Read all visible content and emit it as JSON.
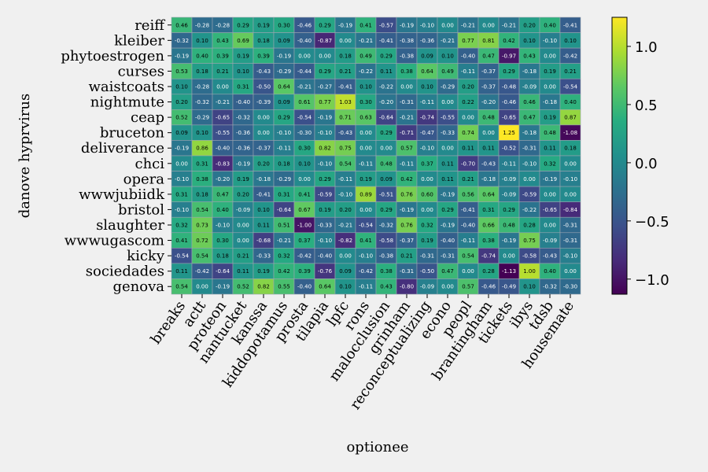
{
  "chart_data": {
    "type": "heatmap",
    "title": "",
    "xlabel": "optionee",
    "ylabel": "danove hyprvirus",
    "x_categories": [
      "breaks",
      "actt",
      "proteon",
      "nantucket",
      "kanssa",
      "kiddopotamus",
      "prosta",
      "tilapia",
      "lpfc",
      "rons",
      "malocclusion",
      "grinham",
      "reconceptualizing",
      "econo",
      "peopl",
      "brantingham",
      "tickets",
      "ibys",
      "tdsb",
      "housemate"
    ],
    "y_categories": [
      "reiff",
      "kleiber",
      "phytoestrogen",
      "curses",
      "waistcoats",
      "nightmute",
      "ceap",
      "bruceton",
      "deliverance",
      "chci",
      "opera",
      "wwwjubiidk",
      "bristol",
      "slaughter",
      "wwwugascom",
      "kicky",
      "sociedades",
      "genova"
    ],
    "values": [
      [
        0.46,
        -0.28,
        -0.28,
        0.29,
        0.19,
        0.3,
        -0.46,
        0.29,
        -0.19,
        0.41,
        -0.57,
        -0.19,
        -0.1,
        0.0,
        -0.21,
        0.0,
        -0.21,
        0.2,
        0.4,
        -0.41
      ],
      [
        -0.32,
        0.1,
        0.43,
        0.69,
        0.18,
        0.09,
        -0.4,
        -0.87,
        0.0,
        -0.21,
        -0.41,
        -0.38,
        -0.36,
        -0.21,
        0.77,
        0.81,
        0.42,
        0.1,
        -0.1,
        0.1
      ],
      [
        -0.19,
        0.4,
        0.39,
        0.19,
        0.39,
        -0.19,
        0.0,
        0.0,
        0.18,
        0.49,
        0.29,
        -0.38,
        0.09,
        0.1,
        -0.4,
        0.47,
        -0.97,
        0.43,
        0.0,
        -0.42
      ],
      [
        0.53,
        0.18,
        0.21,
        0.1,
        -0.43,
        -0.29,
        -0.44,
        0.29,
        0.21,
        -0.22,
        0.11,
        0.38,
        0.64,
        0.49,
        -0.11,
        -0.37,
        0.29,
        -0.18,
        0.19,
        0.21
      ],
      [
        0.1,
        -0.28,
        0.0,
        0.31,
        -0.5,
        0.64,
        -0.21,
        -0.27,
        -0.41,
        0.1,
        -0.22,
        0.0,
        0.1,
        -0.29,
        0.2,
        -0.37,
        -0.48,
        -0.09,
        0.0,
        -0.54
      ],
      [
        0.2,
        -0.32,
        -0.21,
        -0.4,
        -0.39,
        0.09,
        0.61,
        0.77,
        1.03,
        0.3,
        -0.2,
        -0.31,
        -0.11,
        0.0,
        0.22,
        -0.2,
        -0.46,
        0.46,
        -0.18,
        0.4
      ],
      [
        0.52,
        -0.29,
        -0.65,
        -0.32,
        0.0,
        0.29,
        -0.54,
        -0.19,
        0.71,
        0.63,
        -0.64,
        -0.21,
        -0.74,
        -0.55,
        0.0,
        0.48,
        -0.65,
        0.47,
        0.19,
        0.87
      ],
      [
        0.09,
        0.1,
        -0.55,
        -0.36,
        0.0,
        -0.1,
        -0.3,
        -0.1,
        -0.43,
        0.0,
        0.29,
        -0.71,
        -0.47,
        -0.33,
        0.74,
        0.0,
        1.25,
        -0.18,
        0.48,
        -1.08
      ],
      [
        -0.19,
        0.86,
        -0.4,
        -0.36,
        -0.37,
        -0.11,
        0.3,
        0.82,
        0.75,
        0.0,
        0.0,
        0.57,
        -0.1,
        0.0,
        0.11,
        0.11,
        -0.52,
        -0.31,
        0.11,
        0.18
      ],
      [
        0.0,
        0.31,
        -0.83,
        -0.19,
        0.2,
        0.18,
        0.1,
        -0.1,
        0.54,
        -0.11,
        0.48,
        -0.11,
        0.37,
        0.11,
        -0.7,
        -0.43,
        -0.11,
        -0.1,
        0.32,
        0.0
      ],
      [
        -0.1,
        0.38,
        -0.2,
        0.19,
        -0.18,
        -0.29,
        0.0,
        0.29,
        -0.11,
        0.19,
        0.09,
        0.42,
        0.0,
        0.11,
        0.21,
        -0.18,
        -0.09,
        0.0,
        -0.19,
        -0.1
      ],
      [
        0.31,
        0.18,
        0.47,
        0.2,
        -0.41,
        0.31,
        0.41,
        -0.59,
        -0.1,
        0.89,
        -0.51,
        0.76,
        0.6,
        -0.19,
        0.56,
        0.64,
        -0.09,
        -0.59,
        0.0,
        0.0
      ],
      [
        -0.1,
        0.54,
        0.4,
        -0.09,
        0.1,
        -0.64,
        0.67,
        0.19,
        0.2,
        0.0,
        0.29,
        -0.19,
        0.0,
        0.29,
        -0.41,
        0.31,
        0.29,
        -0.22,
        -0.65,
        -0.84
      ],
      [
        0.32,
        0.73,
        -0.1,
        0.0,
        0.11,
        0.51,
        -1.0,
        -0.33,
        -0.21,
        -0.54,
        -0.32,
        0.76,
        0.32,
        -0.19,
        -0.4,
        0.66,
        0.48,
        0.28,
        0.0,
        -0.31
      ],
      [
        0.41,
        0.72,
        0.3,
        0.0,
        -0.68,
        -0.21,
        0.37,
        -0.1,
        -0.82,
        0.41,
        -0.58,
        -0.37,
        0.19,
        -0.4,
        -0.11,
        0.38,
        -0.19,
        0.75,
        -0.09,
        -0.31
      ],
      [
        -0.54,
        0.54,
        0.18,
        0.21,
        -0.33,
        0.32,
        -0.42,
        -0.4,
        0.0,
        -0.1,
        -0.38,
        0.21,
        -0.31,
        -0.31,
        0.54,
        -0.74,
        0.0,
        -0.58,
        -0.43,
        -0.1
      ],
      [
        0.11,
        -0.42,
        -0.64,
        0.11,
        0.19,
        0.42,
        0.39,
        -0.76,
        0.09,
        -0.42,
        0.38,
        -0.31,
        -0.5,
        0.47,
        0.0,
        0.28,
        -1.13,
        1.0,
        0.4,
        0.0
      ],
      [
        0.54,
        0.0,
        -0.19,
        0.52,
        0.82,
        0.55,
        -0.4,
        0.64,
        0.1,
        -0.11,
        0.43,
        -0.8,
        -0.09,
        0.0,
        0.57,
        -0.46,
        -0.49,
        0.1,
        -0.32,
        -0.3
      ]
    ],
    "value_range": [
      -1.13,
      1.25
    ],
    "colormap": "viridis",
    "colorbar": {
      "ticks": [
        -1.0,
        -0.5,
        0.0,
        0.5,
        1.0
      ],
      "tick_labels": [
        "−1.0",
        "−0.5",
        "0.0",
        "0.5",
        "1.0"
      ]
    },
    "annotations": "cell values shown with 2 decimals"
  },
  "colors": {
    "background": "#f0f0f0",
    "grid_line": "#9aa4b0"
  }
}
